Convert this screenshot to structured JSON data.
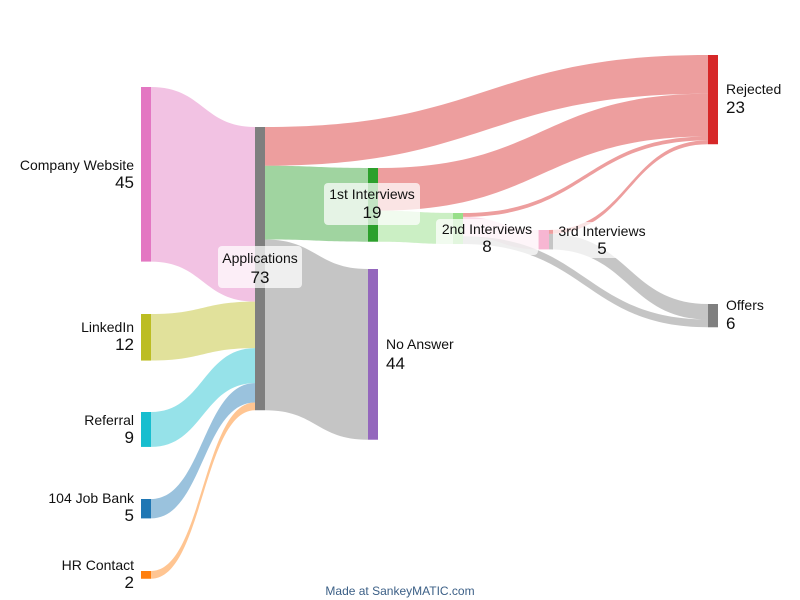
{
  "chart_data": {
    "type": "sankey",
    "nodes": [
      {
        "id": "company",
        "name": "Company Website",
        "value": "45",
        "color": "#e377c2"
      },
      {
        "id": "linkedin",
        "name": "LinkedIn",
        "value": "12",
        "color": "#bcbd22"
      },
      {
        "id": "referral",
        "name": "Referral",
        "value": "9",
        "color": "#17becf"
      },
      {
        "id": "jobbank",
        "name": "104 Job Bank",
        "value": "5",
        "color": "#1f77b4"
      },
      {
        "id": "hr",
        "name": "HR Contact",
        "value": "2",
        "color": "#ff7f0e"
      },
      {
        "id": "applications",
        "name": "Applications",
        "value": "73",
        "color": "#7f7f7f"
      },
      {
        "id": "first",
        "name": "1st Interviews",
        "value": "19",
        "color": "#2ca02c"
      },
      {
        "id": "noanswer",
        "name": "No Answer",
        "value": "44",
        "color": "#9467bd"
      },
      {
        "id": "second",
        "name": "2nd Interviews",
        "value": "8",
        "color": "#98df8a"
      },
      {
        "id": "third",
        "name": "3rd Interviews",
        "value": "5",
        "color": "#f7b6d2"
      },
      {
        "id": "rejected",
        "name": "Rejected",
        "value": "23",
        "color": "#d62728"
      },
      {
        "id": "offers",
        "name": "Offers",
        "value": "6",
        "color": "#7f7f7f"
      }
    ],
    "links": [
      {
        "source": "Company Website",
        "target": "Applications",
        "value": 45
      },
      {
        "source": "LinkedIn",
        "target": "Applications",
        "value": 12
      },
      {
        "source": "Referral",
        "target": "Applications",
        "value": 9
      },
      {
        "source": "104 Job Bank",
        "target": "Applications",
        "value": 5
      },
      {
        "source": "HR Contact",
        "target": "Applications",
        "value": 2
      },
      {
        "source": "Applications",
        "target": "Rejected",
        "value": 10
      },
      {
        "source": "Applications",
        "target": "1st Interviews",
        "value": 19
      },
      {
        "source": "Applications",
        "target": "No Answer",
        "value": 44
      },
      {
        "source": "1st Interviews",
        "target": "Rejected",
        "value": 11
      },
      {
        "source": "1st Interviews",
        "target": "2nd Interviews",
        "value": 8
      },
      {
        "source": "2nd Interviews",
        "target": "Rejected",
        "value": 1
      },
      {
        "source": "2nd Interviews",
        "target": "3rd Interviews",
        "value": 5
      },
      {
        "source": "2nd Interviews",
        "target": "Offers",
        "value": 2
      },
      {
        "source": "3rd Interviews",
        "target": "Rejected",
        "value": 1
      },
      {
        "source": "3rd Interviews",
        "target": "Offers",
        "value": 4
      }
    ]
  },
  "footer": "Made at SankeyMATIC.com"
}
